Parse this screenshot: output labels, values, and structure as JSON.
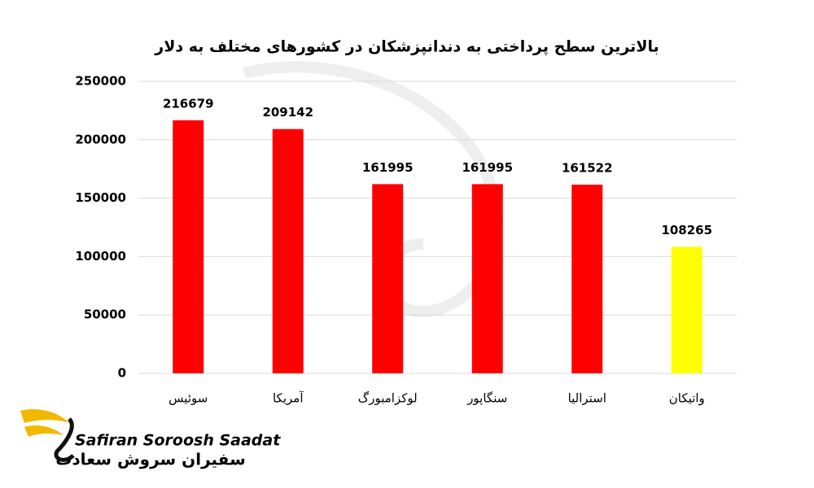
{
  "chart_data": {
    "type": "bar",
    "title": "بالاترین سطح پرداختی به دندانپزشکان در کشورهای مختلف به دلار",
    "categories": [
      "سوئیس",
      "آمریکا",
      "لوکزامبورگ",
      "سنگاپور",
      "استرالیا",
      "واتیکان"
    ],
    "values": [
      216679,
      209142,
      161995,
      161995,
      161522,
      108265
    ],
    "colors": [
      "#ff0000",
      "#ff0000",
      "#ff0000",
      "#ff0000",
      "#ff0000",
      "#ffff00"
    ],
    "ylim": [
      0,
      250000
    ],
    "yticks": [
      0,
      50000,
      100000,
      150000,
      200000,
      250000
    ],
    "grid": true
  },
  "logo": {
    "name_en": "Safiran Soroosh Saadat",
    "name_fa": "سفیران سروش سعادت"
  }
}
